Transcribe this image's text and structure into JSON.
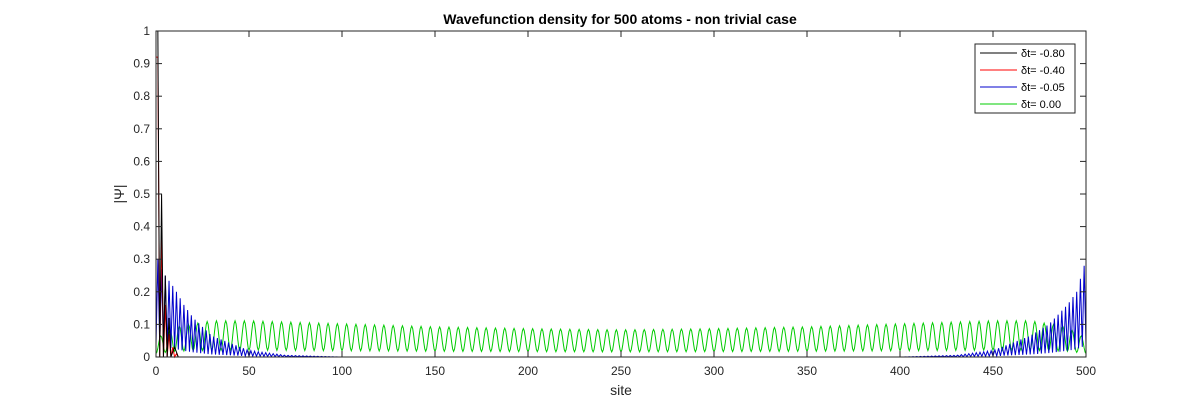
{
  "chart_data": {
    "type": "line",
    "title": "Wavefunction density for 500 atoms - non trivial case",
    "xlabel": "site",
    "ylabel": "|Ψ|",
    "xlim": [
      0,
      500
    ],
    "ylim": [
      0,
      1
    ],
    "xticks": [
      "0",
      "50",
      "100",
      "150",
      "200",
      "250",
      "300",
      "350",
      "400",
      "450",
      "500"
    ],
    "yticks": [
      "0",
      "0.1",
      "0.2",
      "0.3",
      "0.4",
      "0.5",
      "0.6",
      "0.7",
      "0.8",
      "0.9",
      "1"
    ],
    "legend_position": "top-right",
    "grid": false,
    "series": [
      {
        "name": "δt= -0.80",
        "color": "#000000",
        "profile": "edge-localized, decay per site 0.5",
        "x": [
          1,
          2,
          3,
          4,
          5,
          6,
          7,
          8,
          10,
          12,
          15,
          20,
          50,
          100,
          250,
          500
        ],
        "y": [
          1.0,
          0.0,
          0.5,
          0.0,
          0.25,
          0.0,
          0.12,
          0.0,
          0.03,
          0.0,
          0.0,
          0.0,
          0.0,
          0.0,
          0.0,
          0.0
        ]
      },
      {
        "name": "δt= -0.40",
        "color": "#ff0000",
        "profile": "edge-localized, decay per site 0.65",
        "x": [
          1,
          2,
          3,
          4,
          5,
          6,
          7,
          8,
          9,
          10,
          11,
          12,
          15,
          20,
          50,
          100,
          250,
          500
        ],
        "y": [
          0.92,
          0.0,
          0.38,
          0.0,
          0.16,
          0.0,
          0.07,
          0.0,
          0.03,
          0.0,
          0.01,
          0.0,
          0.0,
          0.0,
          0.0,
          0.0,
          0.0,
          0.0
        ]
      },
      {
        "name": "δt= -0.05",
        "color": "#0000cc",
        "profile": "two-edge localized, alternating sites, decay per site 0.95",
        "x": [
          1,
          3,
          5,
          10,
          15,
          20,
          30,
          50,
          70,
          100,
          250,
          400,
          430,
          450,
          470,
          480,
          490,
          495,
          500
        ],
        "y": [
          0.3,
          0.27,
          0.25,
          0.21,
          0.16,
          0.12,
          0.065,
          0.02,
          0.005,
          0.0,
          0.0,
          0.0,
          0.005,
          0.02,
          0.065,
          0.1,
          0.16,
          0.2,
          0.3
        ]
      },
      {
        "name": "δt= 0.00",
        "color": "#00cc00",
        "profile": "extended standing wave, period ~5 sites",
        "x": [
          0,
          10,
          30,
          50,
          100,
          150,
          200,
          250,
          300,
          350,
          400,
          450,
          470,
          490,
          500
        ],
        "y": [
          0.03,
          0.05,
          0.06,
          0.06,
          0.055,
          0.05,
          0.047,
          0.045,
          0.047,
          0.05,
          0.055,
          0.06,
          0.06,
          0.05,
          0.03
        ]
      }
    ]
  }
}
